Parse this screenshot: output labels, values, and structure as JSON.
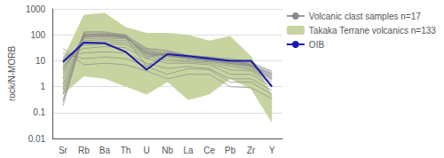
{
  "chart_data": {
    "type": "line",
    "categories": [
      "Sr",
      "Rb",
      "Ba",
      "Th",
      "U",
      "Nb",
      "La",
      "Ce",
      "Pb",
      "Zr",
      "Y"
    ],
    "ylabel": "rock/N-MORB",
    "log": "y",
    "ylim": [
      0.01,
      1000
    ],
    "yticks": [
      0.01,
      0.1,
      1,
      10,
      100,
      1000
    ],
    "grid": true,
    "legend": "right",
    "series": [
      {
        "name": "Volcanic clast samples n=17",
        "type": "line",
        "color": "#888888",
        "values": [
          [
            0.18,
            110,
            100,
            80,
            6,
            20,
            15,
            13,
            10,
            8,
            4.0
          ],
          [
            0.25,
            130,
            130,
            100,
            12,
            22,
            16,
            14,
            12,
            9,
            3.5
          ],
          [
            0.3,
            120,
            120,
            90,
            15,
            18,
            14,
            12,
            10,
            7,
            3.2
          ],
          [
            0.5,
            100,
            105,
            85,
            18,
            17,
            12,
            11,
            9,
            6.5,
            3.0
          ],
          [
            0.8,
            85,
            90,
            80,
            20,
            15,
            12,
            10,
            8,
            6,
            2.5
          ],
          [
            1.2,
            90,
            100,
            90,
            25,
            18,
            14,
            12,
            10,
            7,
            2.2
          ],
          [
            2.0,
            80,
            85,
            75,
            22,
            16,
            12,
            10,
            8,
            6,
            2.0
          ],
          [
            3.0,
            100,
            110,
            100,
            30,
            25,
            16,
            14,
            10,
            8,
            2.8
          ],
          [
            4.0,
            90,
            95,
            85,
            28,
            22,
            15,
            13,
            9,
            7,
            2.5
          ],
          [
            5.0,
            70,
            75,
            70,
            24,
            18,
            13,
            11,
            8,
            6,
            2.0
          ],
          [
            6.0,
            60,
            65,
            60,
            20,
            15,
            12,
            10,
            7,
            5,
            1.8
          ],
          [
            8.0,
            50,
            55,
            50,
            18,
            12,
            10,
            9,
            6,
            4.5,
            1.5
          ],
          [
            10.0,
            40,
            45,
            42,
            15,
            10,
            9,
            8,
            4.5,
            4,
            1.2
          ],
          [
            12.0,
            30,
            35,
            32,
            12,
            8,
            8,
            7,
            3,
            3,
            1.0
          ],
          [
            15.0,
            20,
            22,
            20,
            8,
            5,
            6,
            5,
            2,
            2,
            0.7
          ],
          [
            20.0,
            12,
            14,
            12,
            6,
            3,
            5,
            4.5,
            1.5,
            1.5,
            0.5
          ],
          [
            30.0,
            7,
            8,
            7,
            4,
            2,
            3,
            3,
            1,
            0.9,
            0.35
          ]
        ]
      },
      {
        "name": "Takaka Terrane volcanics n=133",
        "type": "area",
        "color": "#c8d4a0",
        "upper": [
          12,
          600,
          700,
          200,
          120,
          120,
          100,
          60,
          90,
          15,
          0.5
        ],
        "lower": [
          0.5,
          2.5,
          2.0,
          1.0,
          0.5,
          1.5,
          0.3,
          0.5,
          2.0,
          0.8,
          0.04
        ]
      },
      {
        "name": "OIB",
        "type": "line",
        "color": "#1a1aaa",
        "values": [
          9.0,
          50,
          47,
          22,
          4.5,
          18,
          15,
          12,
          10,
          10,
          1.0
        ]
      }
    ]
  }
}
